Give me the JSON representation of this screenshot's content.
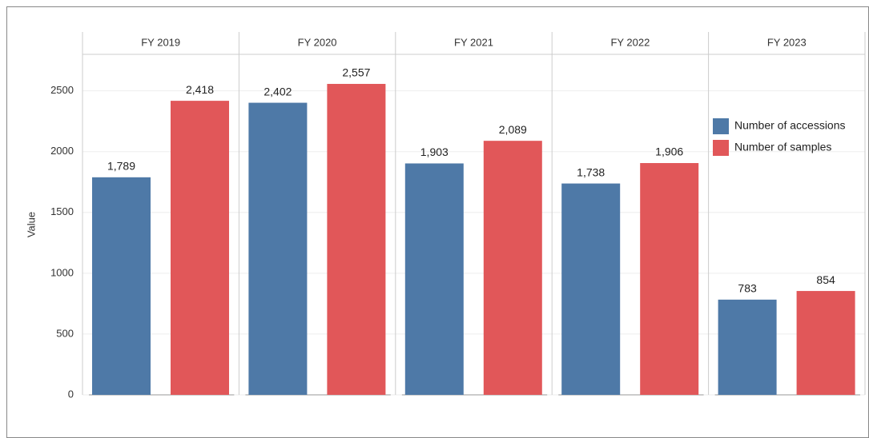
{
  "chart_data": {
    "type": "bar",
    "categories": [
      "FY 2019",
      "FY 2020",
      "FY 2021",
      "FY 2022",
      "FY 2023"
    ],
    "y_label": "Value",
    "series": [
      {
        "name": "Number of accessions",
        "color": "#4e79a7",
        "values": [
          1789,
          2402,
          1903,
          1738,
          783
        ],
        "value_labels": [
          "1,789",
          "2,402",
          "1,903",
          "1,738",
          "783"
        ]
      },
      {
        "name": "Number of samples",
        "color": "#e15759",
        "values": [
          2418,
          2557,
          2089,
          1906,
          854
        ],
        "value_labels": [
          "2,418",
          "2,557",
          "2,089",
          "1,906",
          "854"
        ]
      }
    ],
    "ylim": [
      0,
      2800
    ],
    "yticks": [
      0,
      500,
      1000,
      1500,
      2000,
      2500
    ],
    "grid": true,
    "legend": "top-right"
  }
}
